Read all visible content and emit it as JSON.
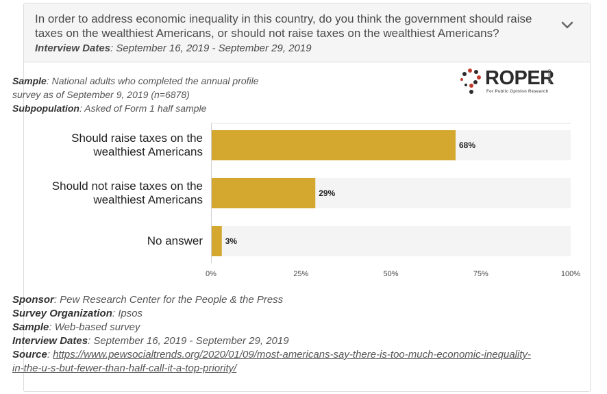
{
  "header": {
    "question": "In order to address economic inequality in this country, do you think the government should raise taxes on the wealthiest Americans, or should not raise taxes on the wealthiest Americans?",
    "dates_label": "Interview Dates",
    "dates_value": ": September 16, 2019 - September 29, 2019"
  },
  "meta": {
    "sample_label": "Sample",
    "sample_line1": ": National adults who completed the annual profile",
    "sample_line2": "survey as of September 9, 2019 (n=6878)",
    "subpop_label": "Subpopulation",
    "subpop_value": ": Asked of Form 1 half sample"
  },
  "logo": {
    "name": "ROPER",
    "tagline": "For Public Opinion Research",
    "side": "CENTER"
  },
  "colors": {
    "bar": "#d4a82e",
    "track": "#f4f4f4",
    "gridline": "#e6e6e6"
  },
  "chart_data": {
    "type": "bar",
    "orientation": "horizontal",
    "categories": [
      "Should raise taxes on the wealthiest Americans",
      "Should not raise taxes on the wealthiest Americans",
      "No answer"
    ],
    "category_lines": [
      [
        "Should raise taxes on the",
        "wealthiest Americans"
      ],
      [
        "Should not raise taxes on the",
        "wealthiest Americans"
      ],
      [
        "No answer"
      ]
    ],
    "values": [
      68,
      29,
      3
    ],
    "value_labels": [
      "68%",
      "29%",
      "3%"
    ],
    "xlim": [
      0,
      100
    ],
    "xticks": [
      0,
      25,
      50,
      75,
      100
    ],
    "xtick_labels": [
      "0%",
      "25%",
      "50%",
      "75%",
      "100%"
    ],
    "title": "",
    "xlabel": "",
    "ylabel": ""
  },
  "footer": {
    "sponsor_label": "Sponsor",
    "sponsor_value": ": Pew Research Center for the People & the Press",
    "org_label": "Survey Organization",
    "org_value": ": Ipsos",
    "sample_label": "Sample",
    "sample_value": ": Web-based survey",
    "dates_label": "Interview Dates",
    "dates_value": ": September 16, 2019 - September 29, 2019",
    "source_label": "Source",
    "source_sep": ": ",
    "source_line1": "https://www.pewsocialtrends.org/2020/01/09/most-americans-say-there-is-too-much-economic-inequality-",
    "source_line2": "in-the-u-s-but-fewer-than-half-call-it-a-top-priority/"
  }
}
